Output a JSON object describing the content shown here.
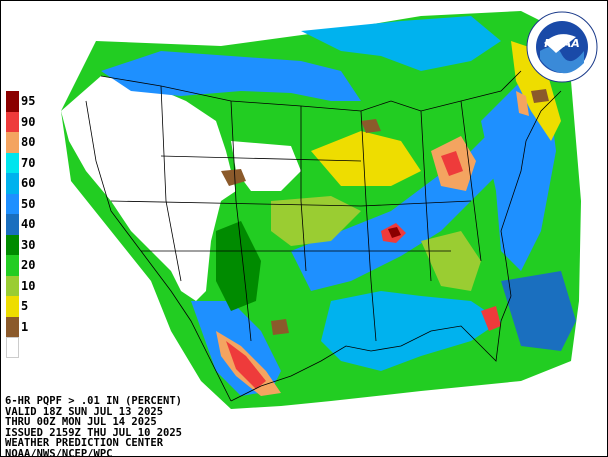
{
  "map": {
    "product_lines": [
      "6-HR PQPF > .01 IN (PERCENT)",
      "VALID 18Z SUN JUL 13 2025",
      "THRU 00Z MON JUL 14 2025",
      "ISSUED 2159Z THU JUL 10 2025",
      "WEATHER PREDICTION CENTER",
      "NOAA/NWS/NCEP/WPC"
    ],
    "logo_text": "NOAA",
    "legend": [
      {
        "label": "95",
        "color": "#8b0000"
      },
      {
        "label": "90",
        "color": "#ee3b3b"
      },
      {
        "label": "80",
        "color": "#f4a460"
      },
      {
        "label": "70",
        "color": "#00e5ee"
      },
      {
        "label": "60",
        "color": "#00b2ee"
      },
      {
        "label": "50",
        "color": "#1e90ff"
      },
      {
        "label": "40",
        "color": "#1a6fbf"
      },
      {
        "label": "30",
        "color": "#008b00"
      },
      {
        "label": "20",
        "color": "#22cd22"
      },
      {
        "label": "10",
        "color": "#9acd32"
      },
      {
        "label": "5",
        "color": "#eedd00"
      },
      {
        "label": "1",
        "color": "#8b5a2b"
      },
      {
        "label": "",
        "color": "#ffffff"
      }
    ]
  }
}
